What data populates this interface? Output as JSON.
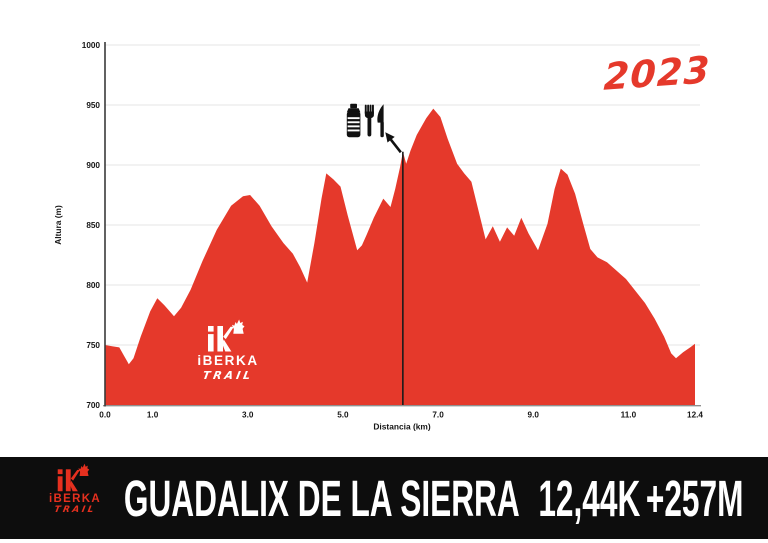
{
  "year_label": "2023",
  "colors": {
    "profile_red": "#e5392b",
    "banner_background": "#0d0d0d",
    "banner_text": "#ffffff",
    "logo_red": "#e5301f",
    "logo_white": "#ffffff",
    "icon_black": "#111111",
    "gridline": "#e4e4e4",
    "y_axis": "#3a3a3a",
    "x_axis": "#8f8f8f",
    "marker_line": "#1a1a1a",
    "tick_text": "#161616"
  },
  "chart_data": {
    "type": "area",
    "title": "",
    "xlabel": "Distancia (km)",
    "ylabel": "Altura (m)",
    "xlim": [
      0,
      12.4
    ],
    "ylim": [
      700,
      1000
    ],
    "grid": "horizontal",
    "legend": "none",
    "x_ticks": [
      {
        "v": 0.0,
        "label": "0.0"
      },
      {
        "v": 1.0,
        "label": "1.0"
      },
      {
        "v": 3.0,
        "label": "3.0"
      },
      {
        "v": 5.0,
        "label": "5.0"
      },
      {
        "v": 7.0,
        "label": "7.0"
      },
      {
        "v": 9.0,
        "label": "9.0"
      },
      {
        "v": 11.0,
        "label": "11.0"
      },
      {
        "v": 12.4,
        "label": "12.4"
      }
    ],
    "y_ticks": [
      {
        "v": 700,
        "label": "700"
      },
      {
        "v": 750,
        "label": "750"
      },
      {
        "v": 800,
        "label": "800"
      },
      {
        "v": 850,
        "label": "850"
      },
      {
        "v": 900,
        "label": "900"
      },
      {
        "v": 950,
        "label": "950"
      },
      {
        "v": 1000,
        "label": "1000"
      }
    ],
    "series": [
      {
        "name": "elevation-profile",
        "color": "#e5392b",
        "points": [
          [
            0.0,
            750
          ],
          [
            0.15,
            749
          ],
          [
            0.3,
            748
          ],
          [
            0.4,
            741
          ],
          [
            0.5,
            734
          ],
          [
            0.6,
            739
          ],
          [
            0.75,
            757
          ],
          [
            0.95,
            778
          ],
          [
            1.1,
            789
          ],
          [
            1.25,
            783
          ],
          [
            1.45,
            774
          ],
          [
            1.6,
            781
          ],
          [
            1.8,
            796
          ],
          [
            2.05,
            820
          ],
          [
            2.35,
            846
          ],
          [
            2.65,
            866
          ],
          [
            2.9,
            874
          ],
          [
            3.05,
            875
          ],
          [
            3.25,
            866
          ],
          [
            3.5,
            849
          ],
          [
            3.75,
            835
          ],
          [
            3.95,
            826
          ],
          [
            4.1,
            815
          ],
          [
            4.25,
            802
          ],
          [
            4.4,
            835
          ],
          [
            4.55,
            872
          ],
          [
            4.65,
            893
          ],
          [
            4.8,
            888
          ],
          [
            4.95,
            882
          ],
          [
            5.1,
            858
          ],
          [
            5.3,
            829
          ],
          [
            5.4,
            833
          ],
          [
            5.5,
            842
          ],
          [
            5.65,
            856
          ],
          [
            5.85,
            872
          ],
          [
            6.0,
            865
          ],
          [
            6.1,
            880
          ],
          [
            6.2,
            898
          ],
          [
            6.26,
            911
          ],
          [
            6.33,
            901
          ],
          [
            6.42,
            912
          ],
          [
            6.55,
            925
          ],
          [
            6.75,
            939
          ],
          [
            6.9,
            947
          ],
          [
            7.05,
            940
          ],
          [
            7.2,
            922
          ],
          [
            7.4,
            901
          ],
          [
            7.55,
            893
          ],
          [
            7.7,
            886
          ],
          [
            7.85,
            862
          ],
          [
            8.0,
            838
          ],
          [
            8.15,
            849
          ],
          [
            8.3,
            836
          ],
          [
            8.45,
            848
          ],
          [
            8.6,
            841
          ],
          [
            8.75,
            856
          ],
          [
            8.9,
            843
          ],
          [
            9.1,
            829
          ],
          [
            9.3,
            851
          ],
          [
            9.45,
            880
          ],
          [
            9.58,
            897
          ],
          [
            9.72,
            892
          ],
          [
            9.88,
            876
          ],
          [
            10.05,
            851
          ],
          [
            10.2,
            830
          ],
          [
            10.35,
            823
          ],
          [
            10.55,
            819
          ],
          [
            10.75,
            812
          ],
          [
            10.95,
            805
          ],
          [
            11.15,
            795
          ],
          [
            11.35,
            785
          ],
          [
            11.55,
            772
          ],
          [
            11.75,
            757
          ],
          [
            11.9,
            743
          ],
          [
            12.0,
            739
          ],
          [
            12.15,
            744
          ],
          [
            12.3,
            748
          ],
          [
            12.4,
            751
          ]
        ]
      }
    ],
    "aid_station_marker": {
      "km": 6.26,
      "elevation_top": 911,
      "icons": [
        "water-bottle",
        "fork",
        "knife"
      ]
    }
  },
  "watermark": {
    "monogram": "ik",
    "name": "iBERKA",
    "sub": "TRAIL"
  },
  "banner": {
    "logo": {
      "monogram": "ik",
      "name": "iBERKA",
      "sub": "TRAIL"
    },
    "race_name": "GUADALIX DE LA SIERRA",
    "distance": "12,44K",
    "gain": "+257M"
  }
}
